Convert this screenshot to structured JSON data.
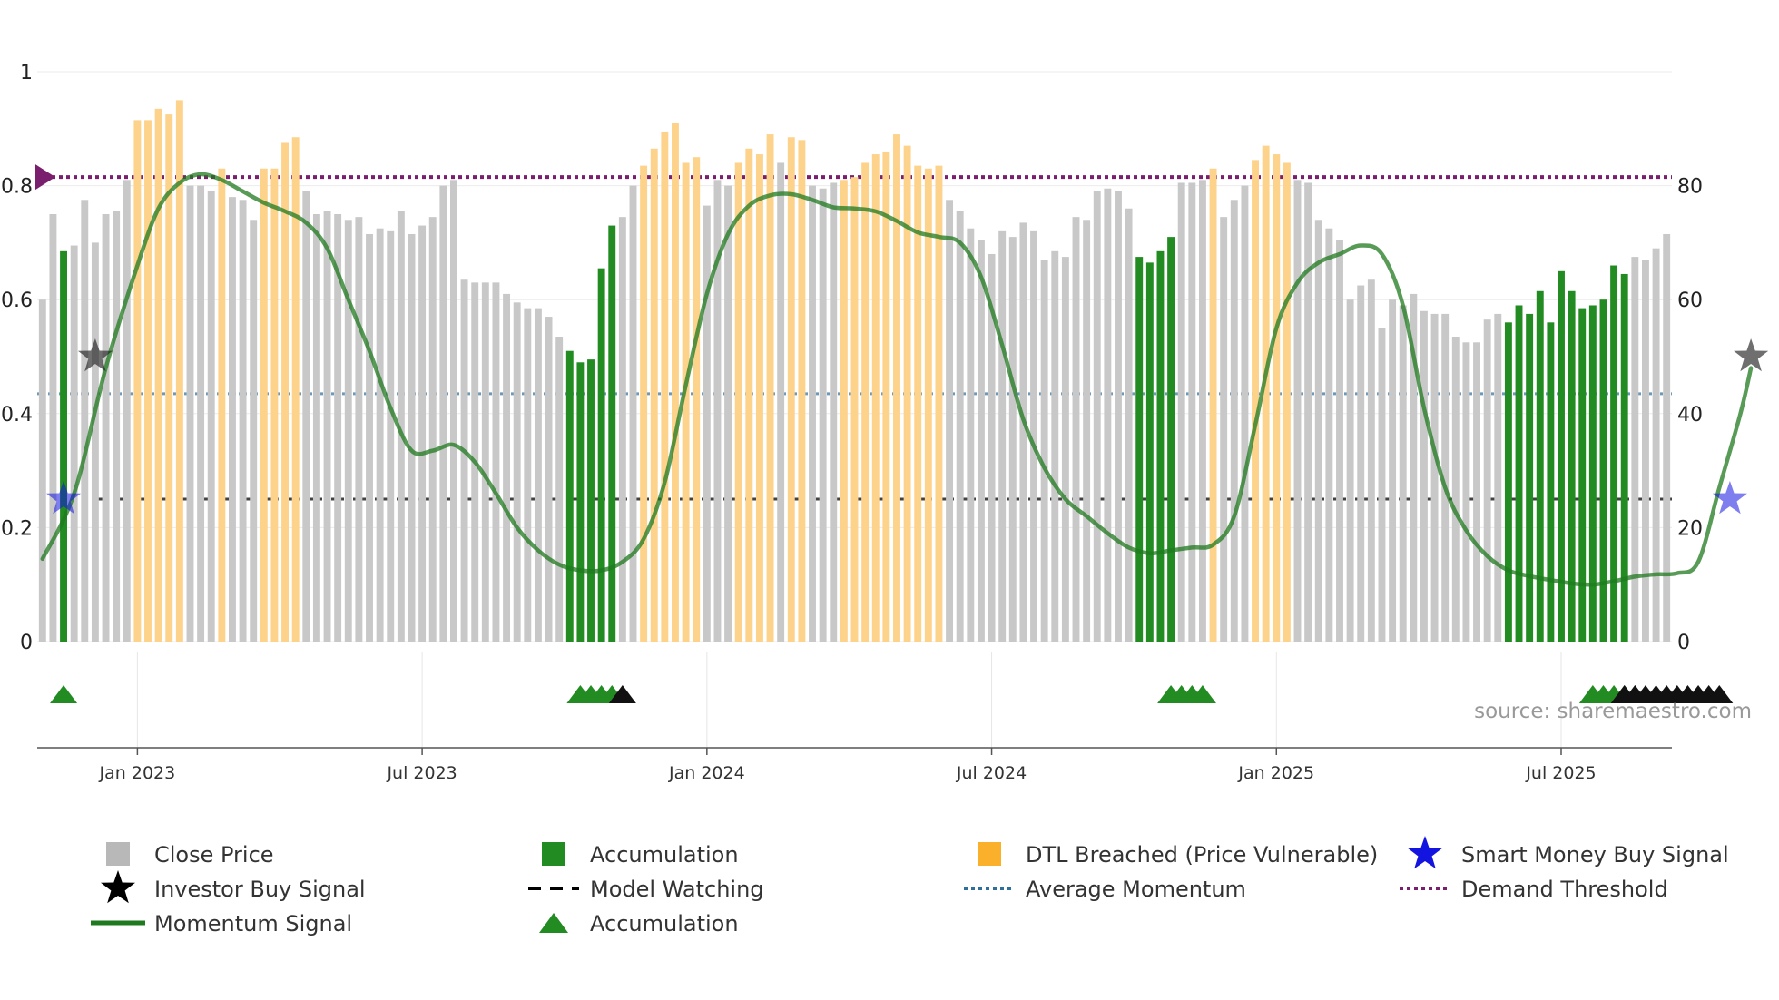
{
  "chart_data": {
    "type": "bar",
    "title": "",
    "source": "source: sharemaestro.com",
    "left_axis": {
      "ticks": [
        "0",
        "0.2",
        "0.4",
        "0.6",
        "0.8",
        "1"
      ],
      "range": [
        0,
        1
      ]
    },
    "right_axis": {
      "ticks": [
        "0",
        "20",
        "40",
        "60",
        "80"
      ],
      "range": [
        0,
        100
      ]
    },
    "date_axis": {
      "labels": [
        "Jan 2023",
        "Jul 2023",
        "Jan 2024",
        "Jul 2024",
        "Jan 2025",
        "Jul 2025"
      ],
      "label_bar_index": [
        9,
        36,
        63,
        90,
        117,
        144
      ]
    },
    "reference_lines": {
      "demand_threshold": 0.815,
      "average_momentum": 0.435,
      "model_watching": 0.25
    },
    "colors": {
      "close": "#c8c8c8",
      "accumulation": "#228b22",
      "dtl": "#fdd28a",
      "momentum": "#1f7a1f",
      "demand": "#7a1f6e",
      "average": "#4a7fa7",
      "watching": "#222222",
      "smart_money": "#1414e0",
      "investor": "#222222"
    },
    "series": [
      {
        "name": "Close Price",
        "note": "bar heights on left axis; state c=close, a=accumulation, d=DTL breached",
        "values": [
          0.6,
          0.75,
          0.685,
          0.695,
          0.775,
          0.7,
          0.75,
          0.755,
          0.81,
          0.915,
          0.915,
          0.935,
          0.925,
          0.95,
          0.8,
          0.8,
          0.79,
          0.83,
          0.78,
          0.775,
          0.74,
          0.83,
          0.83,
          0.875,
          0.885,
          0.79,
          0.75,
          0.755,
          0.75,
          0.74,
          0.745,
          0.715,
          0.725,
          0.72,
          0.755,
          0.715,
          0.73,
          0.745,
          0.8,
          0.81,
          0.635,
          0.63,
          0.63,
          0.63,
          0.61,
          0.595,
          0.585,
          0.585,
          0.57,
          0.535,
          0.51,
          0.49,
          0.495,
          0.655,
          0.73,
          0.745,
          0.8,
          0.835,
          0.865,
          0.895,
          0.91,
          0.84,
          0.85,
          0.765,
          0.81,
          0.8,
          0.84,
          0.865,
          0.855,
          0.89,
          0.84,
          0.885,
          0.88,
          0.8,
          0.795,
          0.805,
          0.81,
          0.815,
          0.84,
          0.855,
          0.86,
          0.89,
          0.87,
          0.835,
          0.83,
          0.835,
          0.775,
          0.755,
          0.725,
          0.705,
          0.68,
          0.72,
          0.71,
          0.735,
          0.72,
          0.67,
          0.685,
          0.675,
          0.745,
          0.74,
          0.79,
          0.795,
          0.79,
          0.76,
          0.675,
          0.665,
          0.685,
          0.71,
          0.805,
          0.805,
          0.81,
          0.83,
          0.745,
          0.775,
          0.8,
          0.845,
          0.87,
          0.855,
          0.84,
          0.81,
          0.805,
          0.74,
          0.725,
          0.705,
          0.6,
          0.625,
          0.635,
          0.55,
          0.6,
          0.59,
          0.61,
          0.58,
          0.575,
          0.575,
          0.535,
          0.525,
          0.525,
          0.565,
          0.575,
          0.56,
          0.59,
          0.575,
          0.615,
          0.56,
          0.65,
          0.615,
          0.585,
          0.59,
          0.6,
          0.66,
          0.645,
          0.675,
          0.67,
          0.69,
          0.715
        ],
        "states": [
          "c",
          "c",
          "a",
          "c",
          "c",
          "c",
          "c",
          "c",
          "c",
          "d",
          "d",
          "d",
          "d",
          "d",
          "c",
          "c",
          "c",
          "d",
          "c",
          "c",
          "c",
          "d",
          "d",
          "d",
          "d",
          "c",
          "c",
          "c",
          "c",
          "c",
          "c",
          "c",
          "c",
          "c",
          "c",
          "c",
          "c",
          "c",
          "c",
          "c",
          "c",
          "c",
          "c",
          "c",
          "c",
          "c",
          "c",
          "c",
          "c",
          "c",
          "a",
          "a",
          "a",
          "a",
          "a",
          "c",
          "c",
          "d",
          "d",
          "d",
          "d",
          "d",
          "d",
          "c",
          "c",
          "c",
          "d",
          "d",
          "d",
          "d",
          "c",
          "d",
          "d",
          "c",
          "c",
          "c",
          "d",
          "d",
          "d",
          "d",
          "d",
          "d",
          "d",
          "d",
          "d",
          "d",
          "c",
          "c",
          "c",
          "c",
          "c",
          "c",
          "c",
          "c",
          "c",
          "c",
          "c",
          "c",
          "c",
          "c",
          "c",
          "c",
          "c",
          "c",
          "a",
          "a",
          "a",
          "a",
          "c",
          "c",
          "c",
          "d",
          "c",
          "c",
          "c",
          "d",
          "d",
          "d",
          "d",
          "c",
          "c",
          "c",
          "c",
          "c",
          "c",
          "c",
          "c",
          "c",
          "c",
          "c",
          "c",
          "c",
          "c",
          "c",
          "c",
          "c",
          "c",
          "c",
          "c",
          "a",
          "a",
          "a",
          "a",
          "a",
          "a",
          "a",
          "a",
          "a",
          "a",
          "a",
          "a",
          "c",
          "c",
          "c",
          "c"
        ]
      },
      {
        "name": "Momentum Signal",
        "note": "right axis units (0-100), sampled at bar indices",
        "points": [
          [
            0,
            14.5
          ],
          [
            3,
            26
          ],
          [
            6,
            48
          ],
          [
            9,
            66
          ],
          [
            11,
            76
          ],
          [
            13,
            80.5
          ],
          [
            15,
            82
          ],
          [
            17,
            81
          ],
          [
            19,
            79
          ],
          [
            21,
            77
          ],
          [
            23,
            75.5
          ],
          [
            25,
            73.5
          ],
          [
            27,
            69
          ],
          [
            29,
            60
          ],
          [
            31,
            51
          ],
          [
            33,
            41
          ],
          [
            35,
            33.5
          ],
          [
            37,
            33.5
          ],
          [
            39,
            34.5
          ],
          [
            41,
            31.5
          ],
          [
            43,
            26
          ],
          [
            45,
            20
          ],
          [
            47,
            16
          ],
          [
            49,
            13.5
          ],
          [
            51,
            12.5
          ],
          [
            53,
            12.5
          ],
          [
            55,
            14
          ],
          [
            57,
            18
          ],
          [
            59,
            28
          ],
          [
            61,
            45
          ],
          [
            63,
            61
          ],
          [
            65,
            71.5
          ],
          [
            67,
            76.5
          ],
          [
            69,
            78.3
          ],
          [
            71,
            78.5
          ],
          [
            73,
            77.5
          ],
          [
            75,
            76.2
          ],
          [
            77,
            76
          ],
          [
            79,
            75.5
          ],
          [
            81,
            73.8
          ],
          [
            83,
            71.8
          ],
          [
            85,
            71
          ],
          [
            87,
            70
          ],
          [
            89,
            64
          ],
          [
            91,
            52
          ],
          [
            93,
            39
          ],
          [
            95,
            30.5
          ],
          [
            97,
            25
          ],
          [
            99,
            22
          ],
          [
            101,
            19
          ],
          [
            103,
            16.5
          ],
          [
            105,
            15.5
          ],
          [
            107,
            16
          ],
          [
            109,
            16.5
          ],
          [
            111,
            17
          ],
          [
            113,
            22
          ],
          [
            115,
            38
          ],
          [
            117,
            55
          ],
          [
            119,
            63
          ],
          [
            121,
            66.5
          ],
          [
            123,
            68
          ],
          [
            125,
            69.5
          ],
          [
            127,
            68
          ],
          [
            129,
            59
          ],
          [
            131,
            41
          ],
          [
            133,
            27
          ],
          [
            135,
            19.5
          ],
          [
            137,
            15
          ],
          [
            139,
            12.5
          ],
          [
            141,
            11.5
          ],
          [
            143,
            10.8
          ],
          [
            145,
            10.2
          ],
          [
            147,
            10
          ],
          [
            149,
            10.6
          ],
          [
            151,
            11.4
          ],
          [
            153,
            11.8
          ],
          [
            155,
            12
          ],
          [
            157,
            14
          ],
          [
            159,
            27
          ],
          [
            161,
            40
          ],
          [
            162,
            48
          ]
        ]
      },
      {
        "name": "Smart Money Buy Signal",
        "points": [
          [
            2,
            0.25
          ],
          [
            160,
            0.25
          ]
        ]
      },
      {
        "name": "Investor Buy Signal",
        "points": [
          [
            5,
            0.5
          ],
          [
            162,
            0.5
          ]
        ]
      },
      {
        "name": "Accumulation",
        "note": "marker row below chart",
        "green_indices": [
          2,
          51,
          52,
          53,
          54,
          107,
          108,
          109,
          110,
          147,
          148,
          149,
          150,
          151
        ],
        "black_indices": [
          55,
          150,
          151,
          152,
          153,
          154,
          155,
          156,
          157,
          158,
          159
        ]
      }
    ]
  },
  "legend": [
    {
      "label": "Close Price",
      "icon": "gray-square-icon"
    },
    {
      "label": "Accumulation",
      "icon": "green-square-icon"
    },
    {
      "label": "DTL Breached (Price Vulnerable)",
      "icon": "orange-square-icon"
    },
    {
      "label": "Smart Money Buy Signal",
      "icon": "blue-star-icon"
    },
    {
      "label": "Investor Buy Signal",
      "icon": "black-star-icon"
    },
    {
      "label": "Model Watching",
      "icon": "dashed-line-icon"
    },
    {
      "label": "Average Momentum",
      "icon": "dotted-line-icon"
    },
    {
      "label": "Demand Threshold",
      "icon": "purple-dotted-line-icon"
    },
    {
      "label": "Momentum Signal",
      "icon": "green-line-icon"
    },
    {
      "label": "Accumulation",
      "icon": "green-triangle-icon"
    }
  ]
}
